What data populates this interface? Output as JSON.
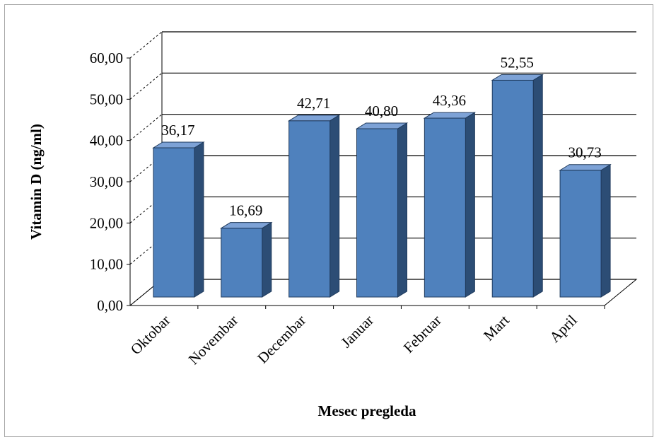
{
  "chart_data": {
    "type": "bar",
    "title": "",
    "xlabel": "Mesec pregleda",
    "ylabel": "Vitamin D (ng/ml)",
    "categories": [
      "Oktobar",
      "Novembar",
      "Decembar",
      "Januar",
      "Februar",
      "Mart",
      "April"
    ],
    "values": [
      36.17,
      16.69,
      42.71,
      40.8,
      43.36,
      52.55,
      30.73
    ],
    "value_labels": [
      "36,17",
      "16,69",
      "42,71",
      "40,80",
      "43,36",
      "52,55",
      "30,73"
    ],
    "ylim": [
      0,
      60
    ],
    "yticks": [
      0,
      10,
      20,
      30,
      40,
      50,
      60
    ],
    "ytick_labels": [
      "0,00",
      "10,00",
      "20,00",
      "30,00",
      "40,00",
      "50,00",
      "60,00"
    ],
    "grid": true,
    "legend": "none",
    "bar_color": "#4f81bd",
    "bar_side_color": "#2c4d75",
    "bar_top_color": "#7da2d6"
  }
}
